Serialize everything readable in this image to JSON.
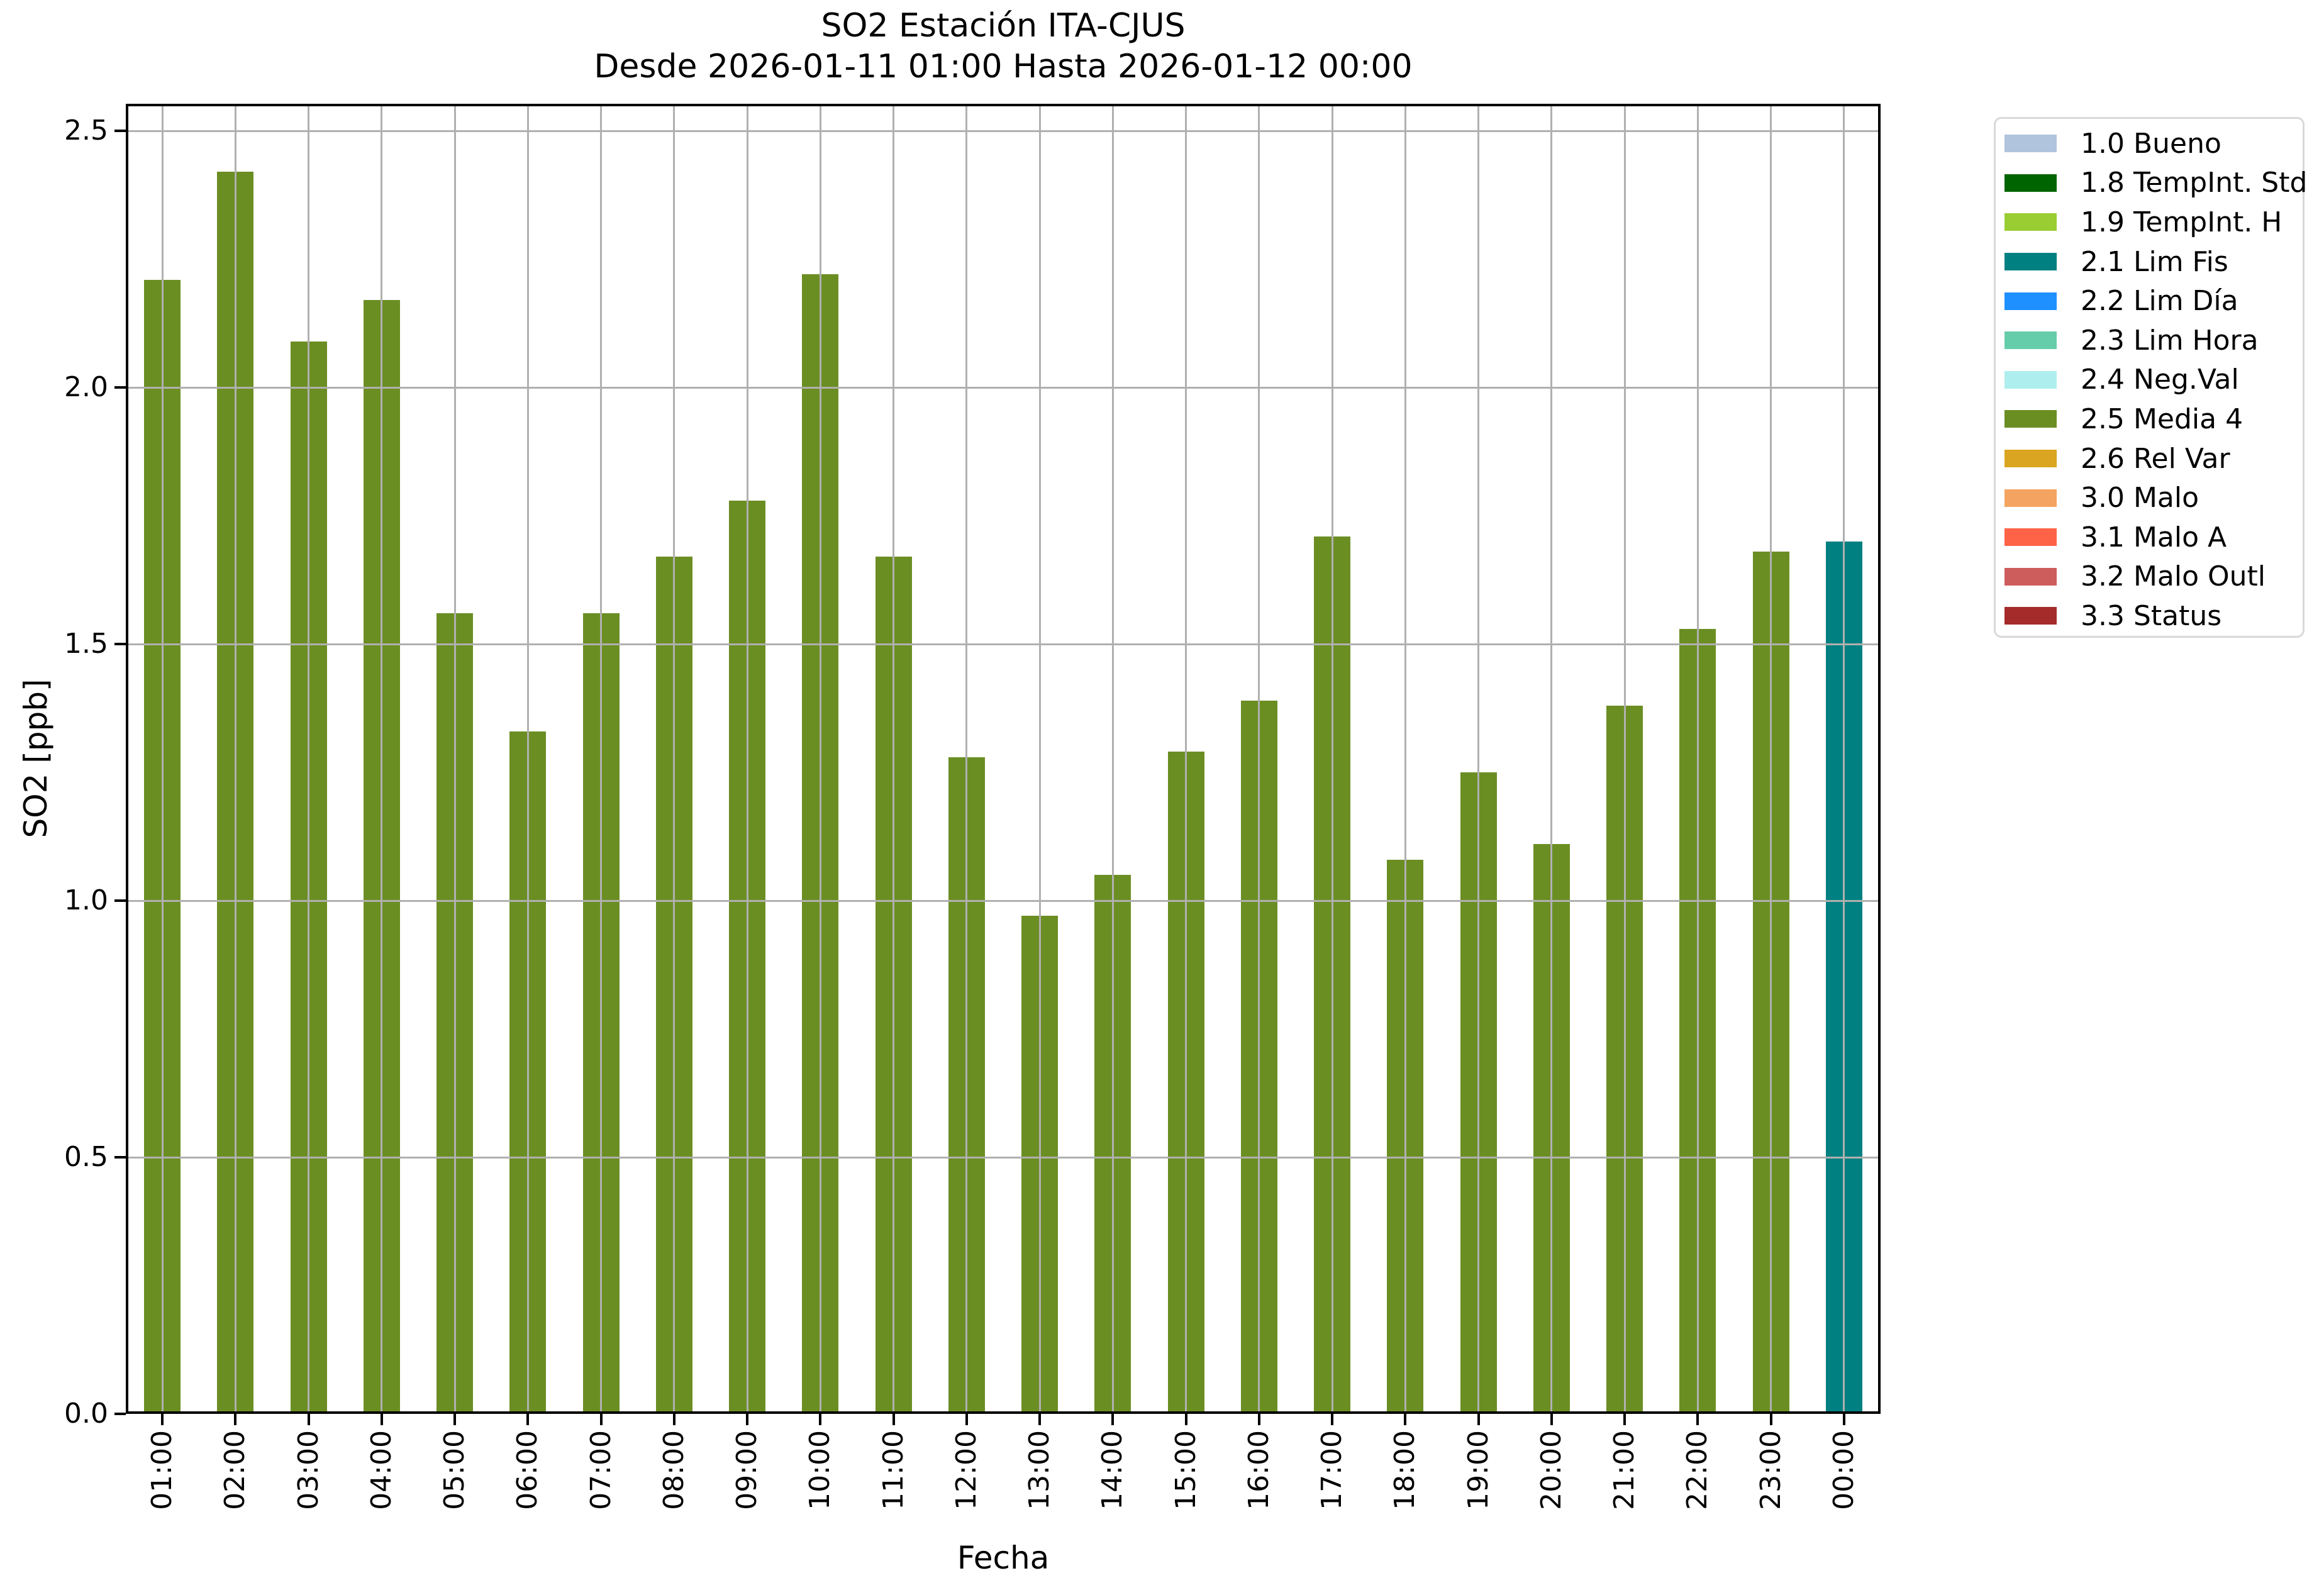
{
  "chart_data": {
    "type": "bar",
    "title": "SO2 Estación ITA-CJUS",
    "subtitle": "Desde 2026-01-11 01:00 Hasta 2026-01-12 00:00",
    "xlabel": "Fecha",
    "ylabel": "SO2 [ppb]",
    "ylim": [
      0,
      2.55
    ],
    "yticks": [
      0.0,
      0.5,
      1.0,
      1.5,
      2.0,
      2.5
    ],
    "ytick_labels": [
      "0.0",
      "0.5",
      "1.0",
      "1.5",
      "2.0",
      "2.5"
    ],
    "grid": true,
    "grid_color": "#b0b0b0",
    "categories": [
      "01:00",
      "02:00",
      "03:00",
      "04:00",
      "05:00",
      "06:00",
      "07:00",
      "08:00",
      "09:00",
      "10:00",
      "11:00",
      "12:00",
      "13:00",
      "14:00",
      "15:00",
      "16:00",
      "17:00",
      "18:00",
      "19:00",
      "20:00",
      "21:00",
      "22:00",
      "23:00",
      "00:00"
    ],
    "values": [
      2.21,
      2.42,
      2.09,
      2.17,
      1.56,
      1.33,
      1.56,
      1.67,
      1.78,
      2.22,
      1.67,
      1.28,
      0.97,
      1.05,
      1.29,
      1.39,
      1.71,
      1.08,
      1.25,
      1.11,
      1.38,
      1.53,
      1.68,
      1.7
    ],
    "bar_legend_keys": [
      "2.5 Media 4",
      "2.5 Media 4",
      "2.5 Media 4",
      "2.5 Media 4",
      "2.5 Media 4",
      "2.5 Media 4",
      "2.5 Media 4",
      "2.5 Media 4",
      "2.5 Media 4",
      "2.5 Media 4",
      "2.5 Media 4",
      "2.5 Media 4",
      "2.5 Media 4",
      "2.5 Media 4",
      "2.5 Media 4",
      "2.5 Media 4",
      "2.5 Media 4",
      "2.5 Media 4",
      "2.5 Media 4",
      "2.5 Media 4",
      "2.5 Media 4",
      "2.5 Media 4",
      "2.5 Media 4",
      "2.1 Lim Fis"
    ],
    "legend": {
      "position": "outside-upper-right",
      "entries": [
        {
          "label": "1.0 Bueno",
          "color": "#B0C4DE"
        },
        {
          "label": "1.8 TempInt. Std",
          "color": "#006400"
        },
        {
          "label": "1.9 TempInt. H",
          "color": "#9ACD32"
        },
        {
          "label": "2.1 Lim Fis",
          "color": "#008080"
        },
        {
          "label": "2.2 Lim Día",
          "color": "#1E90FF"
        },
        {
          "label": "2.3 Lim Hora",
          "color": "#66CDAA"
        },
        {
          "label": "2.4 Neg.Val",
          "color": "#AFEEEE"
        },
        {
          "label": "2.5 Media 4",
          "color": "#6B8E23"
        },
        {
          "label": "2.6 Rel Var",
          "color": "#DAA520"
        },
        {
          "label": "3.0 Malo",
          "color": "#F4A460"
        },
        {
          "label": "3.1 Malo A",
          "color": "#FF6347"
        },
        {
          "label": "3.2 Malo Outl",
          "color": "#CD5C5C"
        },
        {
          "label": "3.3 Status",
          "color": "#A52A2A"
        }
      ]
    }
  }
}
